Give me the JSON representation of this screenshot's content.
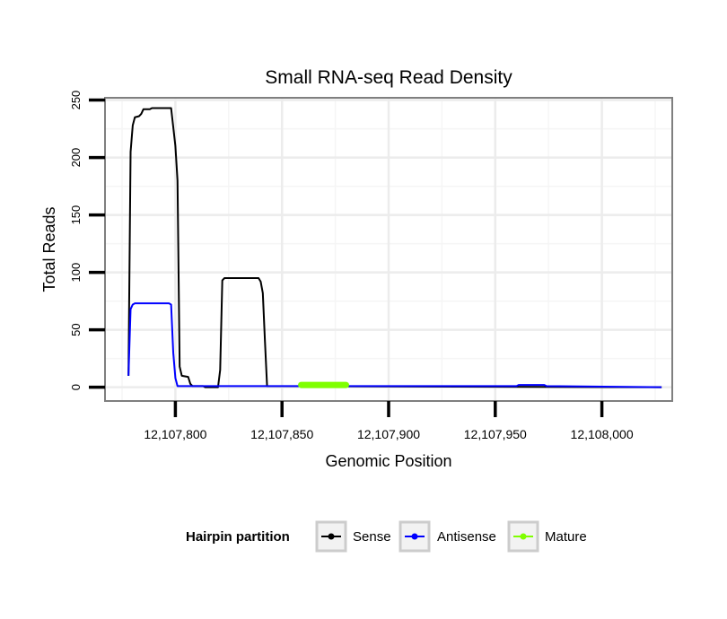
{
  "chart_data": {
    "type": "line",
    "title": "Small RNA-seq Read Density",
    "xlabel": "Genomic Position",
    "ylabel": "Total Reads",
    "xlim": [
      12107767,
      12108033
    ],
    "ylim": [
      -12,
      252
    ],
    "x_ticks": [
      {
        "value": 12107800,
        "label": "12,107,800"
      },
      {
        "value": 12107850,
        "label": "12,107,850"
      },
      {
        "value": 12107900,
        "label": "12,107,900"
      },
      {
        "value": 12107950,
        "label": "12,107,950"
      },
      {
        "value": 12108000,
        "label": "12,108,000"
      }
    ],
    "y_ticks": [
      {
        "value": 0,
        "label": "0"
      },
      {
        "value": 50,
        "label": "50"
      },
      {
        "value": 100,
        "label": "100"
      },
      {
        "value": 150,
        "label": "150"
      },
      {
        "value": 200,
        "label": "200"
      },
      {
        "value": 250,
        "label": "250"
      }
    ],
    "grid": true,
    "legend": {
      "title": "Hairpin partition",
      "position": "bottom",
      "entries": [
        "Sense",
        "Antisense",
        "Mature"
      ]
    },
    "series": [
      {
        "name": "Sense",
        "color": "#000000",
        "points": [
          [
            12107778,
            10
          ],
          [
            12107779,
            205
          ],
          [
            12107780,
            228
          ],
          [
            12107781,
            235
          ],
          [
            12107783,
            236
          ],
          [
            12107784,
            238
          ],
          [
            12107785,
            242
          ],
          [
            12107788,
            242
          ],
          [
            12107789,
            243
          ],
          [
            12107798,
            243
          ],
          [
            12107800,
            210
          ],
          [
            12107801,
            180
          ],
          [
            12107802,
            18
          ],
          [
            12107803,
            10
          ],
          [
            12107806,
            9
          ],
          [
            12107807,
            3
          ],
          [
            12107808,
            1
          ],
          [
            12107813,
            1
          ],
          [
            12107814,
            0
          ],
          [
            12107820,
            0
          ],
          [
            12107821,
            15
          ],
          [
            12107822,
            93
          ],
          [
            12107823,
            95
          ],
          [
            12107839,
            95
          ],
          [
            12107840,
            92
          ],
          [
            12107841,
            82
          ],
          [
            12107842,
            40
          ],
          [
            12107843,
            1
          ],
          [
            12108028,
            0
          ]
        ]
      },
      {
        "name": "Antisense",
        "color": "#0000ff",
        "points": [
          [
            12107778,
            10
          ],
          [
            12107779,
            68
          ],
          [
            12107780,
            72
          ],
          [
            12107781,
            73
          ],
          [
            12107797,
            73
          ],
          [
            12107798,
            72
          ],
          [
            12107799,
            30
          ],
          [
            12107800,
            8
          ],
          [
            12107801,
            1
          ],
          [
            12107960,
            1
          ],
          [
            12107961,
            2
          ],
          [
            12107973,
            2
          ],
          [
            12107974,
            1
          ],
          [
            12108028,
            0
          ]
        ]
      },
      {
        "name": "Mature",
        "color": "#7fff00",
        "points": [
          [
            12107859,
            2
          ],
          [
            12107880,
            2
          ]
        ]
      }
    ]
  }
}
